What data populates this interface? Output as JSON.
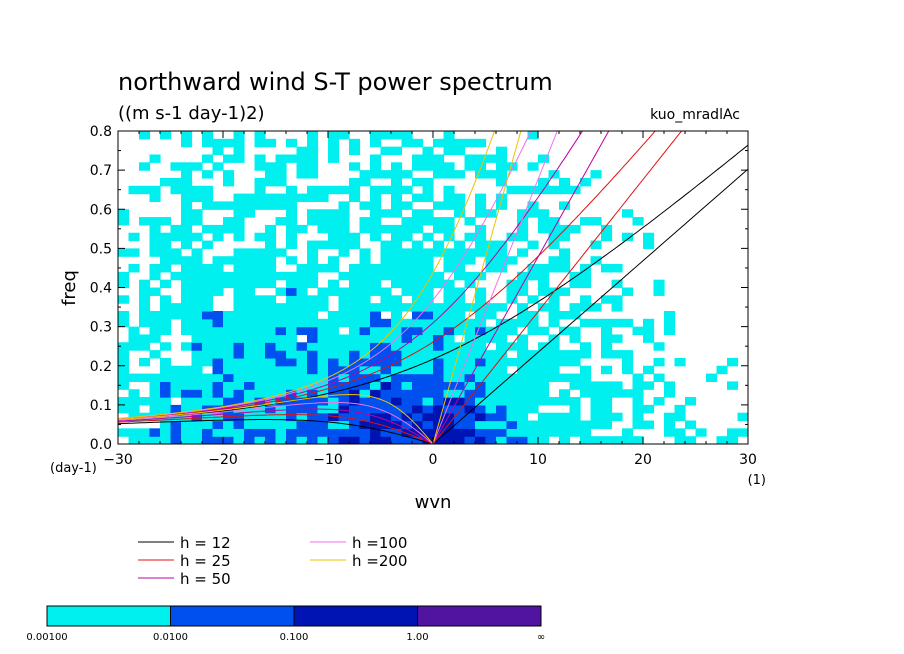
{
  "chart_data": {
    "type": "heatmap",
    "title": "northward wind S-T power spectrum",
    "subtitle": "((m s-1 day-1)2)",
    "tag": "kuo_mradlAc",
    "xlabel": "wvn",
    "ylabel": "freq",
    "x_unit": "(1)",
    "y_unit": "(day-1)",
    "xlim": [
      -30,
      30
    ],
    "ylim": [
      0,
      0.8
    ],
    "x_ticks": [
      "−30",
      "−20",
      "−10",
      "0",
      "10",
      "20",
      "30"
    ],
    "y_ticks": [
      "0.0",
      "0.1",
      "0.2",
      "0.3",
      "0.4",
      "0.5",
      "0.6",
      "0.7",
      "0.8"
    ],
    "grid": false,
    "colorbar": {
      "levels": [
        "0.00100",
        "0.0100",
        "0.100",
        "1.00",
        "∞"
      ],
      "colors": [
        "#00f0f0",
        "#0050f0",
        "#0014b4",
        "#5014a0"
      ]
    },
    "dispersion_curves": [
      {
        "label": "h = 12",
        "h": 12,
        "color": "#000000"
      },
      {
        "label": "h = 25",
        "h": 25,
        "color": "#e01010"
      },
      {
        "label": "h = 50",
        "h": 50,
        "color": "#c000a0"
      },
      {
        "label": "h =100",
        "h": 100,
        "color": "#f070f0"
      },
      {
        "label": "h =200",
        "h": 200,
        "color": "#f0c000"
      }
    ]
  }
}
